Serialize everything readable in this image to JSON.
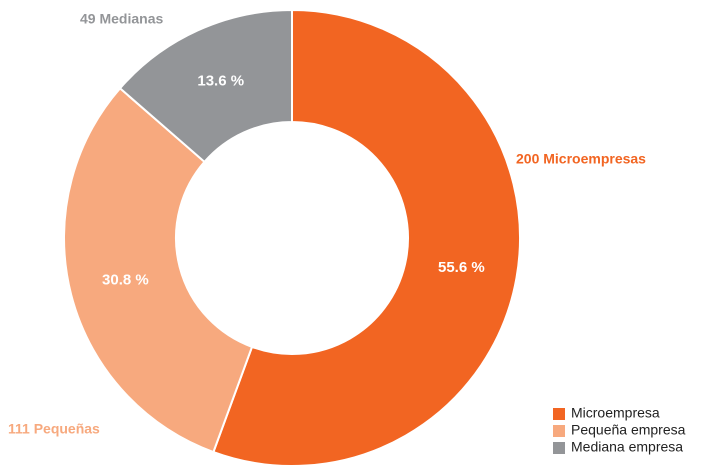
{
  "chart_data": {
    "type": "donut",
    "categories": [
      "Microempresa",
      "Pequeña empresa",
      "Mediana empresa"
    ],
    "values": [
      55.6,
      30.8,
      13.6
    ],
    "value_labels": [
      "55.6 %",
      "30.8 %",
      "13.6 %"
    ],
    "annotations": [
      "200 Microempresas",
      "111 Pequeñas",
      "49 Medianas"
    ],
    "colors": [
      "#f26522",
      "#f7a97e",
      "#939598"
    ],
    "legend": "bottom-right"
  }
}
